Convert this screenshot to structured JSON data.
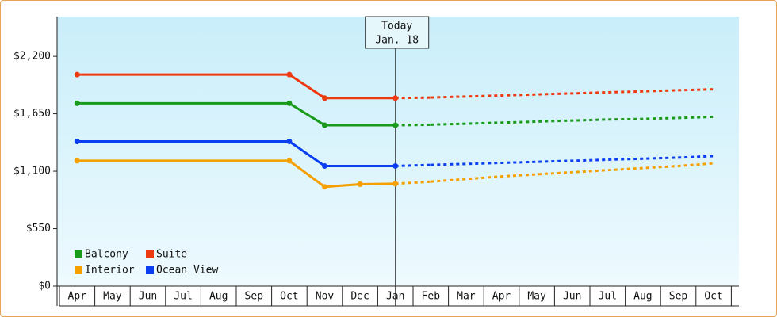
{
  "chart_data": {
    "type": "line",
    "categories": [
      "Apr",
      "May",
      "Jun",
      "Jul",
      "Aug",
      "Sep",
      "Oct",
      "Nov",
      "Dec",
      "Jan",
      "Feb",
      "Mar",
      "Apr",
      "May",
      "Jun",
      "Jul",
      "Aug",
      "Sep",
      "Oct"
    ],
    "series": [
      {
        "name": "Balcony",
        "color": "#1a9a1a",
        "values": [
          1750,
          1750,
          1750,
          1750,
          1750,
          1750,
          1750,
          1540,
          1540,
          1540,
          1545,
          1555,
          1565,
          1575,
          1585,
          1595,
          1600,
          1610,
          1620
        ]
      },
      {
        "name": "Suite",
        "color": "#ee3a10",
        "values": [
          2025,
          2025,
          2025,
          2025,
          2025,
          2025,
          2025,
          1800,
          1800,
          1800,
          1805,
          1815,
          1825,
          1835,
          1845,
          1855,
          1865,
          1875,
          1885
        ]
      },
      {
        "name": "Interior",
        "color": "#f5a000",
        "values": [
          1200,
          1200,
          1200,
          1200,
          1200,
          1200,
          1200,
          950,
          975,
          980,
          1000,
          1025,
          1050,
          1070,
          1090,
          1110,
          1130,
          1150,
          1175
        ]
      },
      {
        "name": "Ocean View",
        "color": "#0a3ef0",
        "values": [
          1385,
          1385,
          1385,
          1385,
          1385,
          1385,
          1385,
          1150,
          1150,
          1150,
          1160,
          1170,
          1180,
          1190,
          1200,
          1210,
          1220,
          1230,
          1245
        ]
      }
    ],
    "ylim": [
      0,
      2580
    ],
    "yticks": [
      {
        "value": 0,
        "label": "$0"
      },
      {
        "value": 550,
        "label": "$550"
      },
      {
        "value": 1100,
        "label": "$1,100"
      },
      {
        "value": 1650,
        "label": "$1,650"
      },
      {
        "value": 2200,
        "label": "$2,200"
      }
    ],
    "annotation": {
      "line1": "Today",
      "line2": "Jan. 18",
      "at": "Jan"
    }
  }
}
